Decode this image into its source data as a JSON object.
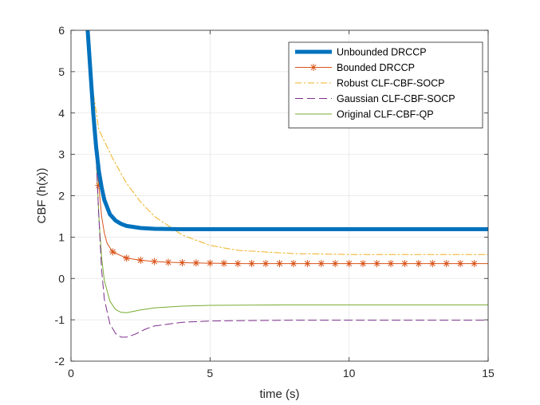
{
  "chart_data": {
    "type": "line",
    "title": "",
    "xlabel": "time (s)",
    "ylabel": "CBF (h(x))",
    "xlim": [
      0,
      15
    ],
    "ylim": [
      -2,
      6
    ],
    "xticks": [
      0,
      5,
      10,
      15
    ],
    "yticks": [
      -2,
      -1,
      0,
      1,
      2,
      3,
      4,
      5,
      6
    ],
    "grid": true,
    "legend_position": "top-right",
    "series": [
      {
        "name": "Unbounded DRCCP",
        "color": "#0072BD",
        "style": "solid-thick",
        "x": [
          0.6,
          0.7,
          0.8,
          0.9,
          1.0,
          1.1,
          1.2,
          1.4,
          1.6,
          1.8,
          2.0,
          2.5,
          3.0,
          4.0,
          5.0,
          8.0,
          12.0,
          15.0
        ],
        "y": [
          6.0,
          5.0,
          4.0,
          3.2,
          2.6,
          2.2,
          1.9,
          1.55,
          1.4,
          1.32,
          1.27,
          1.22,
          1.2,
          1.19,
          1.19,
          1.19,
          1.19,
          1.19
        ]
      },
      {
        "name": "Bounded DRCCP",
        "color": "#D95319",
        "style": "solid-star",
        "x": [
          0.6,
          0.7,
          0.8,
          0.9,
          1.0,
          1.1,
          1.2,
          1.3,
          1.5,
          2.0,
          2.5,
          3.0,
          3.5,
          4.0,
          5.0,
          6.0,
          8.0,
          10.0,
          12.0,
          15.0
        ],
        "y": [
          6.0,
          5.0,
          4.0,
          3.0,
          2.25,
          1.5,
          1.1,
          0.85,
          0.64,
          0.49,
          0.44,
          0.41,
          0.39,
          0.38,
          0.37,
          0.36,
          0.36,
          0.36,
          0.36,
          0.36
        ],
        "marker_x": [
          1.0,
          1.5,
          2.0,
          2.5,
          3.0,
          3.5,
          4.0,
          4.5,
          5.0,
          5.5,
          6.0,
          6.5,
          7.0,
          7.5,
          8.0,
          8.5,
          9.0,
          9.5,
          10.0,
          10.5,
          11.0,
          11.5,
          12.0,
          12.5,
          13.0,
          13.5,
          14.0,
          14.5
        ],
        "marker_y": [
          2.25,
          0.64,
          0.49,
          0.44,
          0.41,
          0.39,
          0.38,
          0.375,
          0.37,
          0.365,
          0.36,
          0.36,
          0.36,
          0.36,
          0.36,
          0.36,
          0.36,
          0.36,
          0.36,
          0.36,
          0.36,
          0.36,
          0.36,
          0.36,
          0.36,
          0.36,
          0.36,
          0.36
        ]
      },
      {
        "name": "Robust CLF-CBF-SOCP",
        "color": "#EDB120",
        "style": "dashdot",
        "x": [
          0.6,
          0.8,
          1.0,
          1.5,
          2.0,
          2.5,
          3.0,
          4.0,
          5.0,
          6.0,
          8.0,
          10.0,
          12.0,
          15.0
        ],
        "y": [
          6.0,
          4.5,
          3.6,
          2.9,
          2.3,
          1.85,
          1.5,
          1.05,
          0.8,
          0.68,
          0.6,
          0.58,
          0.58,
          0.58
        ]
      },
      {
        "name": "Gaussian CLF-CBF-SOCP",
        "color": "#7E2F8E",
        "style": "dashed",
        "x": [
          0.6,
          0.8,
          0.9,
          1.0,
          1.1,
          1.2,
          1.4,
          1.6,
          1.8,
          2.0,
          2.3,
          2.7,
          3.0,
          4.0,
          5.0,
          6.0,
          8.0,
          10.0,
          15.0
        ],
        "y": [
          6.0,
          4.5,
          3.0,
          1.5,
          0.2,
          -0.5,
          -1.1,
          -1.33,
          -1.42,
          -1.42,
          -1.35,
          -1.22,
          -1.15,
          -1.06,
          -1.03,
          -1.02,
          -1.01,
          -1.01,
          -1.01
        ]
      },
      {
        "name": "Original CLF-CBF-QP",
        "color": "#77AC30",
        "style": "solid-thin",
        "x": [
          0.6,
          0.8,
          0.9,
          1.0,
          1.1,
          1.2,
          1.4,
          1.6,
          1.8,
          2.0,
          2.5,
          3.0,
          4.0,
          5.0,
          8.0,
          15.0
        ],
        "y": [
          6.0,
          4.5,
          3.0,
          1.5,
          0.5,
          -0.05,
          -0.55,
          -0.75,
          -0.82,
          -0.83,
          -0.76,
          -0.71,
          -0.67,
          -0.65,
          -0.64,
          -0.64
        ]
      }
    ]
  }
}
